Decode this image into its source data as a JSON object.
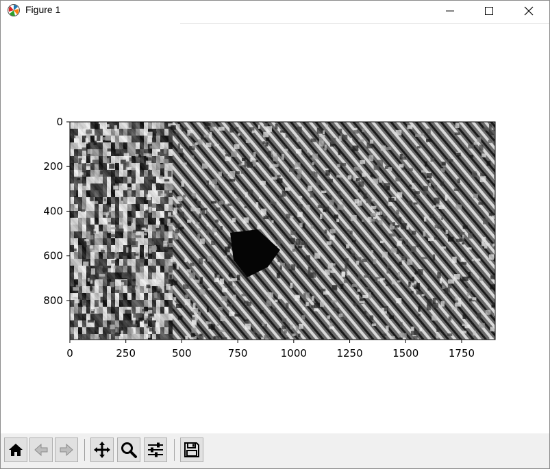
{
  "window": {
    "title": "Figure 1",
    "icon": "matplotlib-logo-icon",
    "controls": [
      "minimize-icon",
      "maximize-icon",
      "close-icon"
    ]
  },
  "figure": {
    "xaxis": {
      "ticks": [
        "0",
        "250",
        "500",
        "750",
        "1000",
        "1250",
        "1500",
        "1750"
      ],
      "range": [
        0,
        1900
      ]
    },
    "yaxis": {
      "ticks": [
        "0",
        "200",
        "400",
        "600",
        "800"
      ],
      "range": [
        0,
        975
      ]
    },
    "image": {
      "type": "grayscale-texture",
      "description_hidden": true
    }
  },
  "toolbar": {
    "buttons": [
      {
        "icon": "home-icon",
        "label": "Home"
      },
      {
        "icon": "back-arrow-icon",
        "label": "Back"
      },
      {
        "icon": "forward-arrow-icon",
        "label": "Forward"
      },
      {
        "icon": "pan-move-icon",
        "label": "Pan"
      },
      {
        "icon": "zoom-magnifier-icon",
        "label": "Zoom"
      },
      {
        "icon": "configure-subplots-icon",
        "label": "Configure"
      },
      {
        "icon": "save-floppy-icon",
        "label": "Save"
      }
    ]
  }
}
